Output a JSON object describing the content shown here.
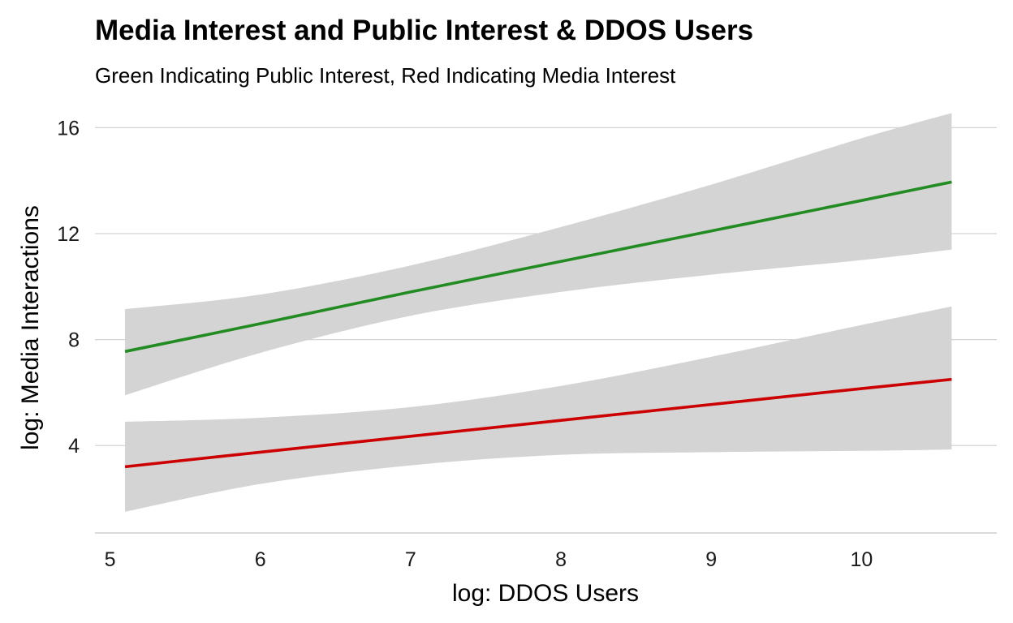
{
  "chart_data": {
    "type": "line",
    "title": "Media Interest and Public Interest & DDOS Users",
    "subtitle": "Green Indicating Public Interest, Red Indicating Media Interest",
    "xlabel": "log: DDOS Users",
    "ylabel": "log: Media Interactions",
    "xlim": [
      4.9,
      10.9
    ],
    "ylim": [
      0.7,
      16.9
    ],
    "x_ticks": [
      5,
      6,
      7,
      8,
      9,
      10
    ],
    "x_tick_labels": [
      "5",
      "6",
      "7",
      "8",
      "9",
      "10"
    ],
    "y_ticks": [
      4,
      8,
      12,
      16
    ],
    "y_tick_labels": [
      "4",
      "8",
      "12",
      "16"
    ],
    "grid": "horizontal major",
    "legend": "none",
    "ribbon_color": "#d4d4d4",
    "series": [
      {
        "color": "#228b22",
        "x": [
          5.1,
          6.0,
          7.0,
          8.0,
          9.0,
          10.0,
          10.6
        ],
        "y": [
          7.55,
          8.6,
          9.8,
          10.95,
          12.1,
          13.25,
          13.95
        ],
        "lower": [
          5.9,
          7.5,
          8.9,
          9.8,
          10.45,
          11.0,
          11.4
        ],
        "upper": [
          9.15,
          9.7,
          10.8,
          12.25,
          13.85,
          15.6,
          16.55
        ]
      },
      {
        "color": "#cc0000",
        "x": [
          5.1,
          6.0,
          7.0,
          8.0,
          9.0,
          10.0,
          10.6
        ],
        "y": [
          3.2,
          3.75,
          4.35,
          4.95,
          5.55,
          6.15,
          6.5
        ],
        "lower": [
          1.5,
          2.55,
          3.25,
          3.65,
          3.75,
          3.8,
          3.85
        ],
        "upper": [
          4.9,
          5.05,
          5.45,
          6.25,
          7.35,
          8.55,
          9.25
        ]
      }
    ]
  }
}
